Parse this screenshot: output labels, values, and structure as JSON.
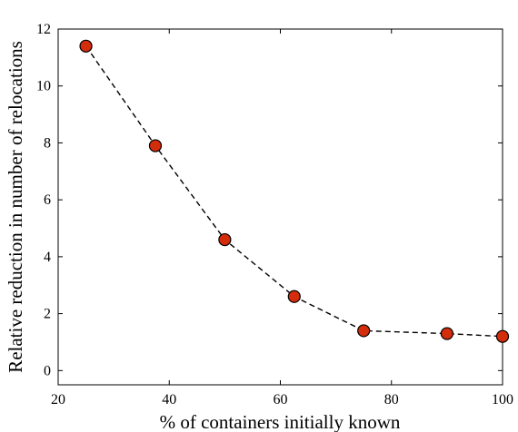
{
  "chart_data": {
    "type": "line",
    "title": "",
    "xlabel": "% of containers initially known",
    "ylabel": "Relative reduction in number of relocations",
    "xlim": [
      20,
      100
    ],
    "ylim": [
      -0.5,
      12
    ],
    "xticks": [
      20,
      40,
      60,
      80,
      100
    ],
    "yticks": [
      0,
      2,
      4,
      6,
      8,
      10,
      12
    ],
    "grid": false,
    "series": [
      {
        "x": [
          25,
          37.5,
          50,
          62.5,
          75,
          90,
          100
        ],
        "y": [
          11.4,
          7.9,
          4.6,
          2.6,
          1.4,
          1.3,
          1.2
        ],
        "line_style": "dashed",
        "line_color": "#000000",
        "marker": "circle",
        "marker_color": "#d42d0c"
      }
    ]
  }
}
